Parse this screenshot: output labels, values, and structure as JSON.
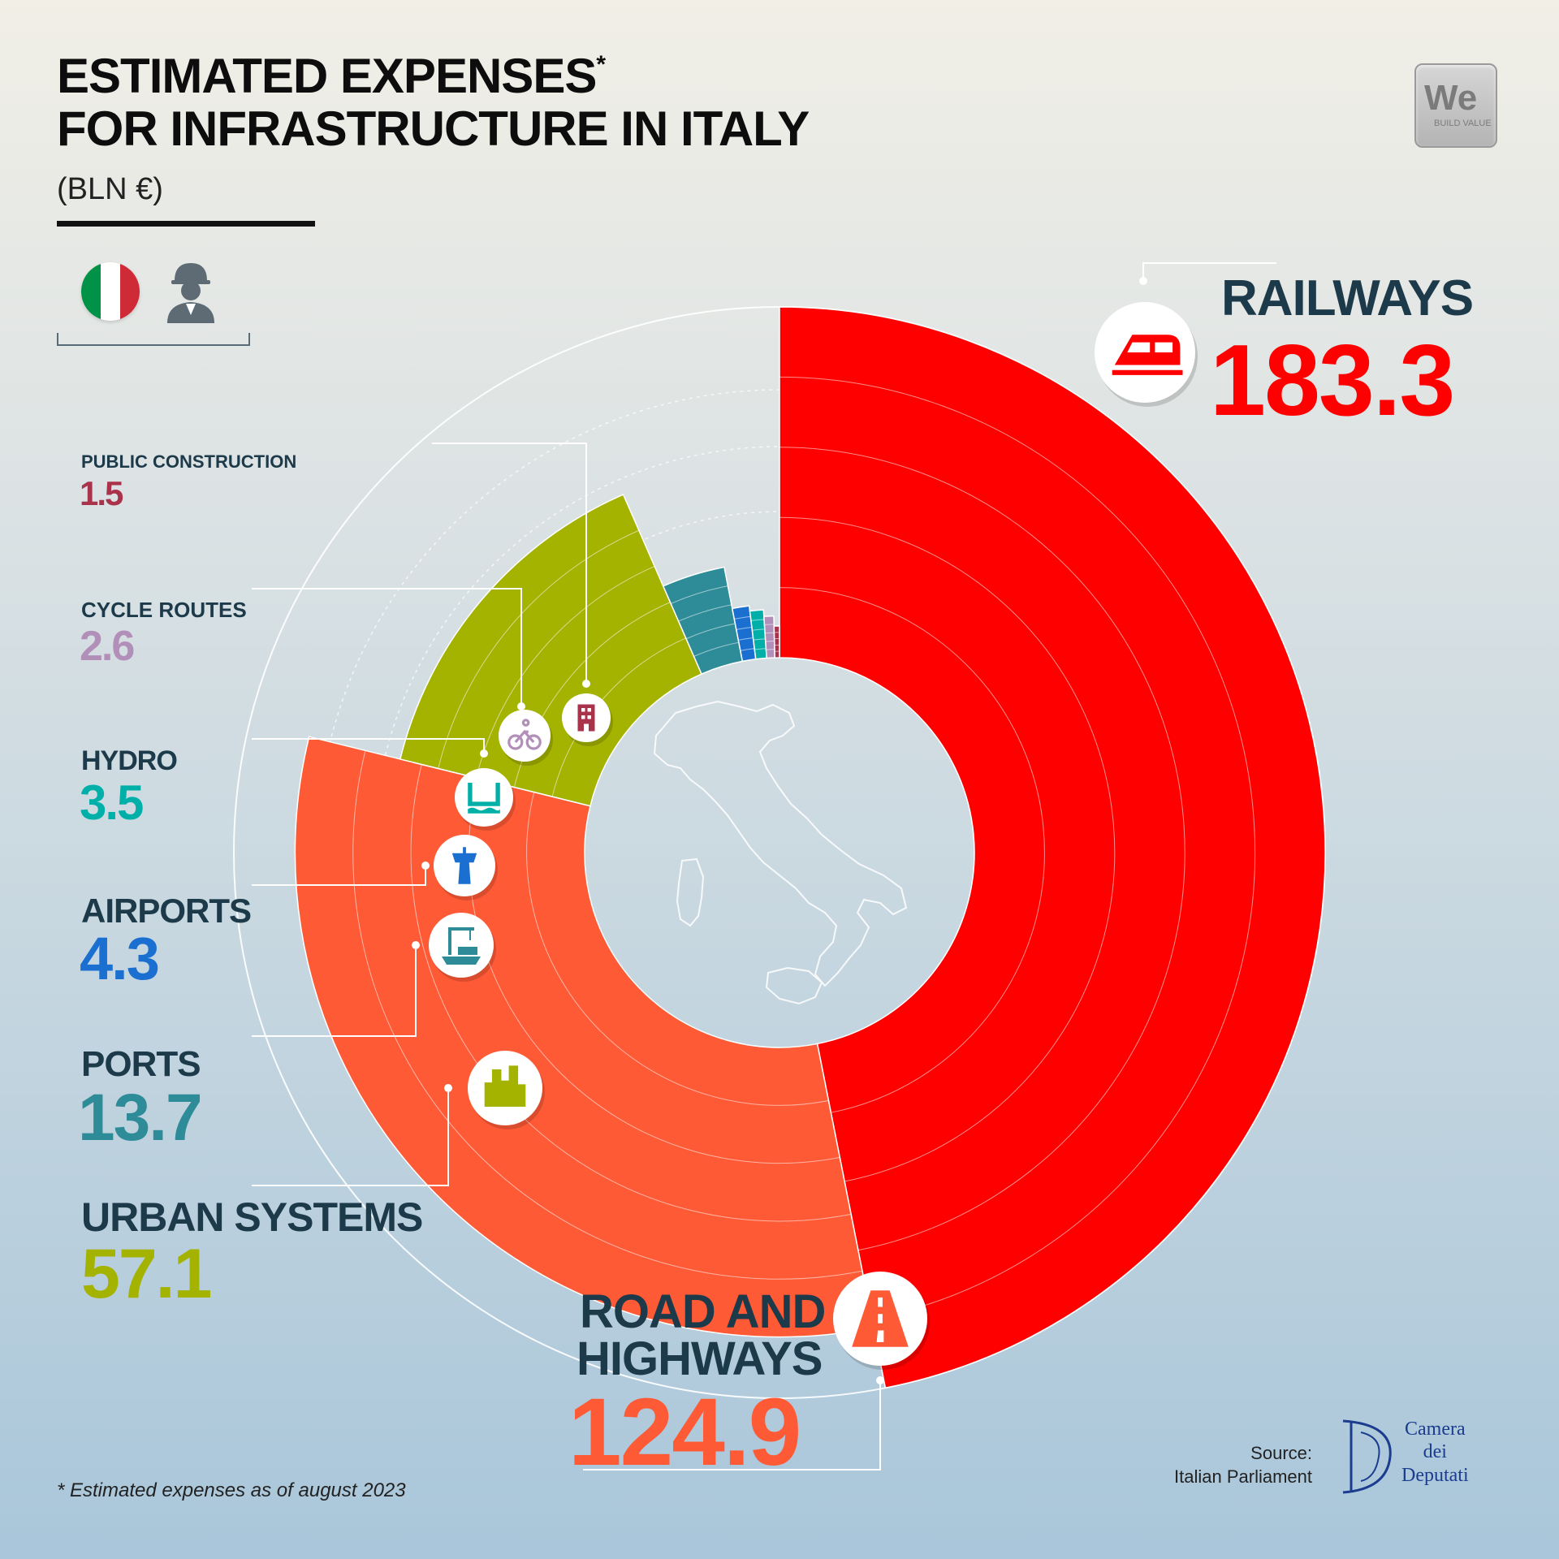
{
  "header": {
    "title_line1": "ESTIMATED EXPENSES",
    "title_asterisk": "*",
    "title_line2": "FOR INFRASTRUCTURE IN ITALY",
    "unit": "(BLN €)"
  },
  "logo": {
    "text": "We",
    "tagline": "BUILD VALUE"
  },
  "colors": {
    "railways": "#ff0000",
    "road_and_highways": "#ff5a36",
    "urban_systems": "#a4b200",
    "ports": "#2e8c99",
    "airports": "#1a6fd1",
    "hydro": "#00b0a8",
    "cycle_routes": "#b18fb8",
    "public_construction": "#a8334a",
    "name_text": "#1d3a4a"
  },
  "icons": [
    "italy-flag-icon",
    "construction-worker-icon",
    "train-icon",
    "road-icon",
    "city-park-icon",
    "port-crane-icon",
    "airport-tower-icon",
    "hydro-dam-icon",
    "bicycle-icon",
    "building-icon"
  ],
  "chart_data": {
    "type": "pie",
    "style": "radial stacked ring, zero at 12 o'clock, clockwise",
    "title": "ESTIMATED EXPENSES FOR INFRASTRUCTURE IN ITALY",
    "unit": "BLN €",
    "categories": [
      "RAILWAYS",
      "ROAD AND HIGHWAYS",
      "URBAN SYSTEMS",
      "PORTS",
      "AIRPORTS",
      "HYDRO",
      "CYCLE ROUTES",
      "PUBLIC CONSTRUCTION"
    ],
    "values": [
      183.3,
      124.9,
      57.1,
      13.7,
      4.3,
      3.5,
      2.6,
      1.5
    ],
    "labels": [
      "183.3",
      "124.9",
      "57.1",
      "13.7",
      "4.3",
      "3.5",
      "2.6",
      "1.5"
    ]
  },
  "source": {
    "label": "Source:",
    "name": "Italian Parliament",
    "logo_line1": "Camera",
    "logo_line2": "dei",
    "logo_line3": "Deputati"
  },
  "footnote": "*  Estimated expenses as of august 2023"
}
